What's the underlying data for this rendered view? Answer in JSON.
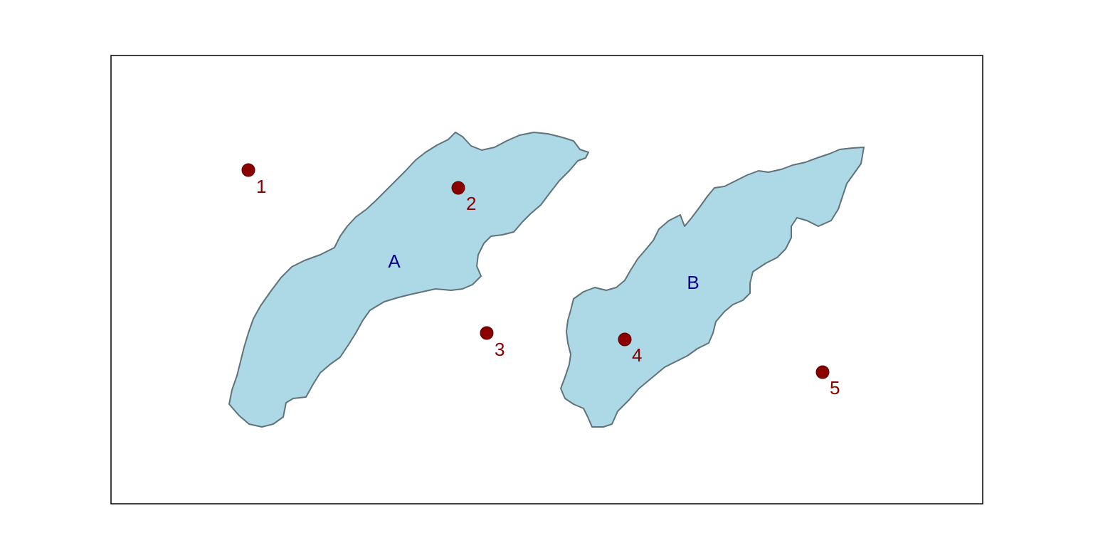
{
  "map": {
    "colors": {
      "background": "#ffffff",
      "frame": "#000000",
      "region_fill": "#add8e6",
      "region_stroke": "#5f7378",
      "region_label": "#00008b",
      "point_fill": "#8b0000",
      "point_stroke": "#5a0000",
      "point_label": "#8b0000"
    },
    "regions": [
      {
        "id": "A",
        "label": "A"
      },
      {
        "id": "B",
        "label": "B"
      }
    ],
    "points": [
      {
        "id": 1,
        "label": "1"
      },
      {
        "id": 2,
        "label": "2"
      },
      {
        "id": 3,
        "label": "3"
      },
      {
        "id": 4,
        "label": "4"
      },
      {
        "id": 5,
        "label": "5"
      }
    ]
  }
}
